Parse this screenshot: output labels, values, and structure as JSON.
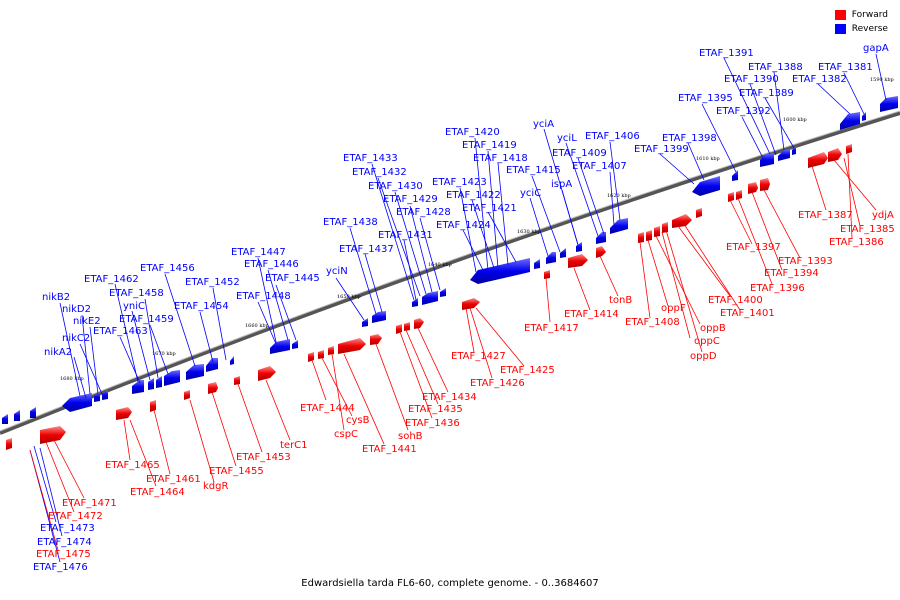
{
  "legend": {
    "forward_label": "Forward",
    "reverse_label": "Reverse",
    "forward_color": "#ff0000",
    "reverse_color": "#0000ff"
  },
  "caption": "Edwardsiella tarda FL6-60, complete genome. - 0..3684607",
  "ticks": [
    "1680 kbp",
    "1670 kbp",
    "1660 kbp",
    "1650 kbp",
    "1640 kbp",
    "1630 kbp",
    "1620 kbp",
    "1610 kbp",
    "1600 kbp",
    "1590 kbp"
  ],
  "reverse_labels": [
    "nikB2",
    "nikD2",
    "nikE2",
    "nikC2",
    "nikA2",
    "ETAF_1462",
    "yniC",
    "ETAF_1458",
    "ETAF_1459",
    "ETAF_1463",
    "ETAF_1456",
    "ETAF_1452",
    "ETAF_1454",
    "ETAF_1447",
    "ETAF_1446",
    "ETAF_1445",
    "ETAF_1448",
    "yciN",
    "ETAF_1438",
    "ETAF_1437",
    "ETAF_1433",
    "ETAF_1432",
    "ETAF_1430",
    "ETAF_1429",
    "ETAF_1428",
    "ETAF_1431",
    "ETAF_1420",
    "ETAF_1419",
    "ETAF_1418",
    "ETAF_1423",
    "ETAF_1422",
    "ETAF_1421",
    "ETAF_1424",
    "yciA",
    "yciL",
    "ETAF_1409",
    "ETAF_1415",
    "yciC",
    "ispA",
    "ETAF_1406",
    "ETAF_1407",
    "ETAF_1398",
    "ETAF_1399",
    "ETAF_1391",
    "ETAF_1388",
    "ETAF_1390",
    "ETAF_1389",
    "ETAF_1395",
    "ETAF_1392",
    "gapA",
    "ETAF_1381",
    "ETAF_1382",
    "ETAF_1473",
    "ETAF_1474",
    "ETAF_1476"
  ],
  "forward_labels": [
    "ETAF_1471",
    "ETAF_1472",
    "ETAF_1475",
    "ETAF_1465",
    "ETAF_1464",
    "ETAF_1461",
    "kdgR",
    "ETAF_1455",
    "ETAF_1453",
    "terC1",
    "ETAF_1444",
    "cysB",
    "cspC",
    "ETAF_1441",
    "sohB",
    "ETAF_1436",
    "ETAF_1435",
    "ETAF_1434",
    "ETAF_1427",
    "ETAF_1426",
    "ETAF_1425",
    "ETAF_1417",
    "ETAF_1414",
    "tonB",
    "ETAF_1408",
    "oppF",
    "oppB",
    "oppC",
    "oppD",
    "ETAF_1400",
    "ETAF_1401",
    "ETAF_1397",
    "ETAF_1396",
    "ETAF_1394",
    "ETAF_1393",
    "ETAF_1387",
    "ydjA",
    "ETAF_1385",
    "ETAF_1386"
  ]
}
